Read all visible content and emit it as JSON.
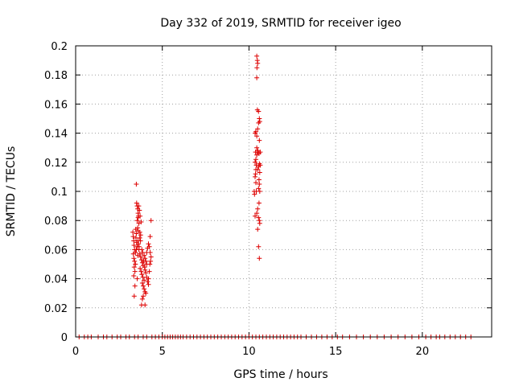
{
  "chart_data": {
    "type": "scatter",
    "title": "Day 332 of 2019, SRMTID for receiver igeo",
    "xlabel": "GPS time / hours",
    "ylabel": "SRMTID / TECUs",
    "xlim": [
      0,
      24
    ],
    "ylim": [
      0,
      0.2
    ],
    "xticks": [
      0,
      5,
      10,
      15,
      20
    ],
    "yticks": [
      0,
      0.02,
      0.04,
      0.06,
      0.08,
      0.1,
      0.12,
      0.14,
      0.16,
      0.18,
      0.2
    ],
    "xtick_labels": [
      "0",
      "5",
      "10",
      "15",
      "20"
    ],
    "ytick_labels": [
      "0",
      "0.02",
      "0.04",
      "0.06",
      "0.08",
      "0.1",
      "0.12",
      "0.14",
      "0.16",
      "0.18",
      "0.2"
    ],
    "grid": true,
    "marker": "+",
    "series_color": "#dd0000",
    "series": [
      {
        "points": [
          [
            3.3,
            0.072
          ],
          [
            3.32,
            0.069
          ],
          [
            3.35,
            0.066
          ],
          [
            3.37,
            0.063
          ],
          [
            3.4,
            0.06
          ],
          [
            3.33,
            0.057
          ],
          [
            3.36,
            0.054
          ],
          [
            3.4,
            0.052
          ],
          [
            3.38,
            0.048
          ],
          [
            3.42,
            0.045
          ],
          [
            3.35,
            0.042
          ],
          [
            3.45,
            0.05
          ],
          [
            3.48,
            0.068
          ],
          [
            3.5,
            0.071
          ],
          [
            3.52,
            0.065
          ],
          [
            3.55,
            0.062
          ],
          [
            3.5,
            0.06
          ],
          [
            3.45,
            0.058
          ],
          [
            3.58,
            0.056
          ],
          [
            3.6,
            0.073
          ],
          [
            3.55,
            0.04
          ],
          [
            3.42,
            0.035
          ],
          [
            3.38,
            0.028
          ],
          [
            3.6,
            0.066
          ],
          [
            3.5,
            0.105
          ],
          [
            3.52,
            0.092
          ],
          [
            3.55,
            0.09
          ],
          [
            3.58,
            0.088
          ],
          [
            3.6,
            0.085
          ],
          [
            3.62,
            0.083
          ],
          [
            3.55,
            0.08
          ],
          [
            3.65,
            0.078
          ],
          [
            3.58,
            0.075
          ],
          [
            3.7,
            0.072
          ],
          [
            3.75,
            0.07
          ],
          [
            3.68,
            0.087
          ],
          [
            3.72,
            0.083
          ],
          [
            3.78,
            0.079
          ],
          [
            3.65,
            0.06
          ],
          [
            3.7,
            0.057
          ],
          [
            3.75,
            0.055
          ],
          [
            3.8,
            0.053
          ],
          [
            3.85,
            0.051
          ],
          [
            3.9,
            0.049
          ],
          [
            3.72,
            0.047
          ],
          [
            3.78,
            0.045
          ],
          [
            3.82,
            0.043
          ],
          [
            3.88,
            0.041
          ],
          [
            3.95,
            0.039
          ],
          [
            3.85,
            0.037
          ],
          [
            3.9,
            0.035
          ],
          [
            3.95,
            0.033
          ],
          [
            4.0,
            0.031
          ],
          [
            3.9,
            0.028
          ],
          [
            3.85,
            0.026
          ],
          [
            3.8,
            0.022
          ],
          [
            3.95,
            0.056
          ],
          [
            4.0,
            0.054
          ],
          [
            4.05,
            0.052
          ],
          [
            4.1,
            0.05
          ],
          [
            4.0,
            0.046
          ],
          [
            4.05,
            0.044
          ],
          [
            4.1,
            0.041
          ],
          [
            4.15,
            0.038
          ],
          [
            4.2,
            0.036
          ],
          [
            4.0,
            0.022
          ],
          [
            4.05,
            0.03
          ],
          [
            4.1,
            0.058
          ],
          [
            4.15,
            0.061
          ],
          [
            4.2,
            0.064
          ],
          [
            4.25,
            0.062
          ],
          [
            4.3,
            0.058
          ],
          [
            4.32,
            0.052
          ],
          [
            4.28,
            0.05
          ],
          [
            4.35,
            0.055
          ],
          [
            4.3,
            0.069
          ],
          [
            4.35,
            0.08
          ],
          [
            4.25,
            0.045
          ],
          [
            4.2,
            0.04
          ],
          [
            3.62,
            0.064
          ],
          [
            3.66,
            0.062
          ],
          [
            3.7,
            0.068
          ],
          [
            3.74,
            0.066
          ],
          [
            3.82,
            0.06
          ],
          [
            3.86,
            0.058
          ],
          [
            3.92,
            0.052
          ],
          [
            3.98,
            0.048
          ],
          [
            3.47,
            0.074
          ],
          [
            3.6,
            0.082
          ],
          [
            3.64,
            0.09
          ],
          [
            10.3,
            0.1
          ],
          [
            10.32,
            0.098
          ],
          [
            10.35,
            0.11
          ],
          [
            10.38,
            0.112
          ],
          [
            10.4,
            0.115
          ],
          [
            10.42,
            0.118
          ],
          [
            10.35,
            0.12
          ],
          [
            10.4,
            0.122
          ],
          [
            10.45,
            0.125
          ],
          [
            10.38,
            0.127
          ],
          [
            10.5,
            0.128
          ],
          [
            10.45,
            0.13
          ],
          [
            10.35,
            0.14
          ],
          [
            10.4,
            0.141
          ],
          [
            10.45,
            0.138
          ],
          [
            10.5,
            0.143
          ],
          [
            10.55,
            0.147
          ],
          [
            10.6,
            0.15
          ],
          [
            10.48,
            0.156
          ],
          [
            10.55,
            0.155
          ],
          [
            10.62,
            0.148
          ],
          [
            10.6,
            0.135
          ],
          [
            10.52,
            0.127
          ],
          [
            10.58,
            0.126
          ],
          [
            10.6,
            0.119
          ],
          [
            10.55,
            0.117
          ],
          [
            10.5,
            0.115
          ],
          [
            10.62,
            0.113
          ],
          [
            10.58,
            0.108
          ],
          [
            10.6,
            0.105
          ],
          [
            10.55,
            0.102
          ],
          [
            10.62,
            0.1
          ],
          [
            10.58,
            0.092
          ],
          [
            10.5,
            0.088
          ],
          [
            10.45,
            0.085
          ],
          [
            10.35,
            0.083
          ],
          [
            10.55,
            0.082
          ],
          [
            10.6,
            0.08
          ],
          [
            10.62,
            0.078
          ],
          [
            10.5,
            0.074
          ],
          [
            10.55,
            0.062
          ],
          [
            10.6,
            0.054
          ],
          [
            10.45,
            0.193
          ],
          [
            10.48,
            0.19
          ],
          [
            10.5,
            0.188
          ],
          [
            10.46,
            0.185
          ],
          [
            10.45,
            0.178
          ],
          [
            10.4,
            0.106
          ],
          [
            10.42,
            0.1
          ],
          [
            10.65,
            0.118
          ],
          [
            10.65,
            0.127
          ]
        ]
      },
      {
        "points": [
          [
            0.2,
            0
          ],
          [
            0.5,
            0
          ],
          [
            0.7,
            0
          ],
          [
            0.9,
            0
          ],
          [
            1.3,
            0
          ],
          [
            1.6,
            0
          ],
          [
            1.8,
            0
          ],
          [
            2.1,
            0
          ],
          [
            2.4,
            0
          ],
          [
            2.6,
            0
          ],
          [
            2.9,
            0
          ],
          [
            3.1,
            0
          ],
          [
            3.4,
            0
          ],
          [
            3.6,
            0
          ],
          [
            3.9,
            0
          ],
          [
            4.1,
            0
          ],
          [
            4.4,
            0
          ],
          [
            4.6,
            0
          ],
          [
            4.8,
            0
          ],
          [
            5.0,
            0
          ],
          [
            5.15,
            0
          ],
          [
            5.3,
            0
          ],
          [
            5.45,
            0
          ],
          [
            5.6,
            0
          ],
          [
            5.75,
            0
          ],
          [
            5.9,
            0
          ],
          [
            6.05,
            0
          ],
          [
            6.2,
            0
          ],
          [
            6.4,
            0
          ],
          [
            6.6,
            0
          ],
          [
            6.8,
            0
          ],
          [
            7.0,
            0
          ],
          [
            7.2,
            0
          ],
          [
            7.4,
            0
          ],
          [
            7.6,
            0
          ],
          [
            7.8,
            0
          ],
          [
            8.0,
            0
          ],
          [
            8.2,
            0
          ],
          [
            8.4,
            0
          ],
          [
            8.6,
            0
          ],
          [
            8.8,
            0
          ],
          [
            9.0,
            0
          ],
          [
            9.2,
            0
          ],
          [
            9.4,
            0
          ],
          [
            9.6,
            0
          ],
          [
            9.8,
            0
          ],
          [
            10.0,
            0
          ],
          [
            10.2,
            0
          ],
          [
            10.4,
            0
          ],
          [
            10.6,
            0
          ],
          [
            10.8,
            0
          ],
          [
            11.0,
            0
          ],
          [
            11.2,
            0
          ],
          [
            11.4,
            0
          ],
          [
            11.6,
            0
          ],
          [
            11.8,
            0
          ],
          [
            12.0,
            0
          ],
          [
            12.2,
            0
          ],
          [
            12.4,
            0
          ],
          [
            12.6,
            0
          ],
          [
            12.8,
            0
          ],
          [
            13.0,
            0
          ],
          [
            13.3,
            0
          ],
          [
            13.6,
            0
          ],
          [
            13.9,
            0
          ],
          [
            14.2,
            0
          ],
          [
            14.5,
            0
          ],
          [
            14.8,
            0
          ],
          [
            15.1,
            0
          ],
          [
            15.4,
            0
          ],
          [
            15.8,
            0
          ],
          [
            16.2,
            0
          ],
          [
            16.6,
            0
          ],
          [
            17.0,
            0
          ],
          [
            17.4,
            0
          ],
          [
            17.8,
            0
          ],
          [
            18.2,
            0
          ],
          [
            18.6,
            0
          ],
          [
            19.0,
            0
          ],
          [
            19.4,
            0
          ],
          [
            19.8,
            0
          ],
          [
            20.2,
            0
          ],
          [
            20.5,
            0
          ],
          [
            20.8,
            0
          ],
          [
            21.0,
            0
          ],
          [
            21.3,
            0
          ],
          [
            21.6,
            0
          ],
          [
            21.9,
            0
          ],
          [
            22.2,
            0
          ],
          [
            22.5,
            0
          ],
          [
            22.8,
            0
          ]
        ]
      }
    ]
  }
}
